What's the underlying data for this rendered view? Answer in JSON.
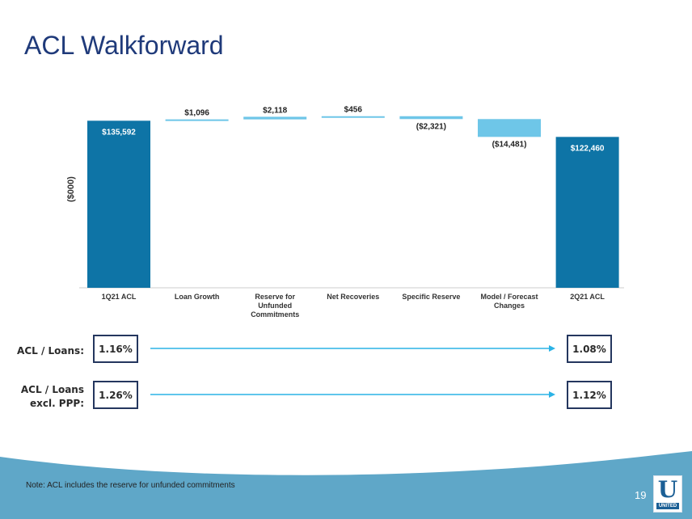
{
  "title": "ACL Walkforward",
  "chart_data": {
    "type": "bar",
    "subtype": "waterfall",
    "ylabel": "($000)",
    "categories": [
      "1Q21 ACL",
      "Loan Growth",
      "Reserve for Unfunded Commitments",
      "Net Recoveries",
      "Specific Reserve",
      "Model / Forecast Changes",
      "2Q21 ACL"
    ],
    "category_lines": [
      [
        "1Q21 ACL"
      ],
      [
        "Loan Growth"
      ],
      [
        "Reserve for",
        "Unfunded",
        "Commitments"
      ],
      [
        "Net Recoveries"
      ],
      [
        "Specific Reserve"
      ],
      [
        "Model / Forecast",
        "Changes"
      ],
      [
        "2Q21 ACL"
      ]
    ],
    "values": [
      135592,
      1096,
      2118,
      456,
      -2321,
      -14481,
      122460
    ],
    "kinds": [
      "total",
      "delta",
      "delta",
      "delta",
      "delta",
      "delta",
      "total"
    ],
    "labels": [
      "$135,592",
      "$1,096",
      "$2,118",
      "$456",
      "($2,321)",
      "($14,481)",
      "$122,460"
    ],
    "colors": {
      "total": "#0e74a6",
      "delta": "#6ec6e8",
      "axis": "#cccccc"
    }
  },
  "ratios": [
    {
      "label_lines": [
        "ACL / Loans:"
      ],
      "start": "1.16%",
      "end": "1.08%"
    },
    {
      "label_lines": [
        "ACL / Loans",
        "excl. PPP:"
      ],
      "start": "1.26%",
      "end": "1.12%"
    }
  ],
  "arrow_color": "#2bb3e6",
  "footer": {
    "note": "Note: ACL includes the reserve for unfunded commitments",
    "page_number": "19",
    "logo_letter": "U",
    "logo_word": "UNITED",
    "wave_color": "#5fa7c8"
  }
}
